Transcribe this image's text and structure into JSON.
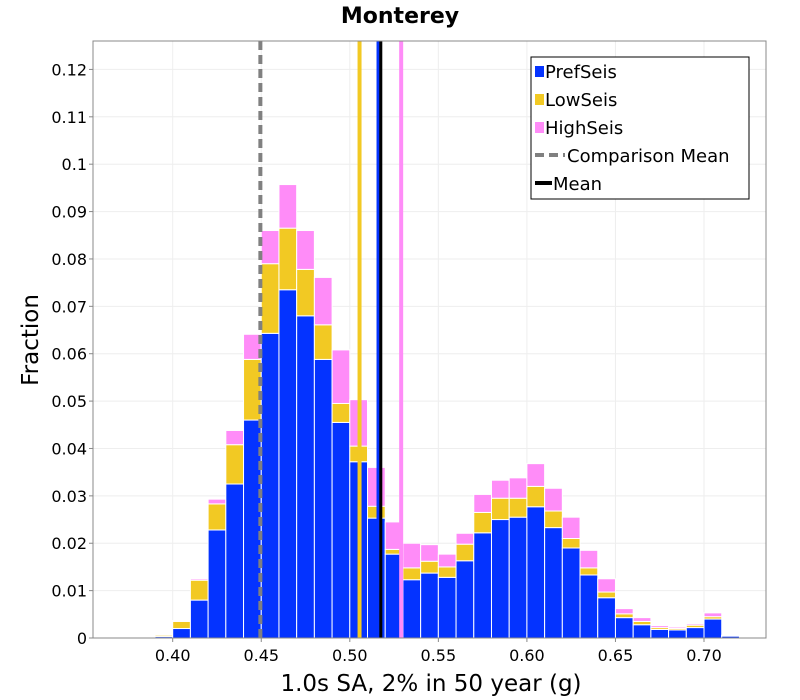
{
  "chart_data": {
    "type": "bar",
    "stacked": true,
    "title": "Monterey",
    "xlabel": "1.0s SA, 2% in 50 year (g)",
    "ylabel": "Fraction",
    "xlim": [
      0.355,
      0.735
    ],
    "ylim": [
      0,
      0.126
    ],
    "bin_width": 0.01,
    "grid": true,
    "legend_position": "top-right",
    "x": [
      0.395,
      0.405,
      0.415,
      0.425,
      0.435,
      0.445,
      0.455,
      0.465,
      0.475,
      0.485,
      0.495,
      0.505,
      0.515,
      0.525,
      0.535,
      0.545,
      0.555,
      0.565,
      0.575,
      0.585,
      0.595,
      0.605,
      0.615,
      0.625,
      0.635,
      0.645,
      0.655,
      0.665,
      0.675,
      0.685,
      0.695,
      0.705,
      0.715
    ],
    "series": [
      {
        "name": "PrefSeis",
        "color": "#0433ff",
        "values": [
          0.0003,
          0.002,
          0.008,
          0.0228,
          0.0325,
          0.046,
          0.0643,
          0.0735,
          0.068,
          0.0588,
          0.0455,
          0.0372,
          0.0253,
          0.0177,
          0.0123,
          0.0137,
          0.0128,
          0.0163,
          0.0222,
          0.025,
          0.0255,
          0.0277,
          0.0233,
          0.019,
          0.0133,
          0.0085,
          0.0043,
          0.0028,
          0.0018,
          0.0017,
          0.0022,
          0.004,
          0.0004
        ]
      },
      {
        "name": "LowSeis",
        "color": "#f2c923",
        "values": [
          0.0003,
          0.0015,
          0.0042,
          0.0055,
          0.0083,
          0.0128,
          0.0147,
          0.013,
          0.0098,
          0.0073,
          0.004,
          0.0033,
          0.0025,
          0.001,
          0.0025,
          0.0025,
          0.0022,
          0.0035,
          0.0043,
          0.0045,
          0.004,
          0.0043,
          0.0035,
          0.002,
          0.0015,
          0.0012,
          0.0008,
          0.0007,
          0.0004,
          0.0003,
          0.0005,
          0.0005,
          0.0001
        ]
      },
      {
        "name": "HighSeis",
        "color": "#ff8cf8",
        "values": [
          0.0001,
          0.0002,
          0.0003,
          0.001,
          0.003,
          0.0053,
          0.007,
          0.0092,
          0.0082,
          0.01,
          0.0113,
          0.0098,
          0.0082,
          0.0058,
          0.0052,
          0.0035,
          0.0027,
          0.0023,
          0.0038,
          0.0038,
          0.0043,
          0.0048,
          0.0048,
          0.0045,
          0.0037,
          0.0028,
          0.0011,
          0.0008,
          0.0004,
          0.0003,
          0.0003,
          0.0008,
          0.0001
        ]
      }
    ],
    "reference_lines": [
      {
        "name": "Comparison Mean",
        "x": 0.4495,
        "color": "#808080",
        "style": "dashed"
      },
      {
        "name": "Mean",
        "x": 0.5175,
        "color": "#000000",
        "style": "solid"
      },
      {
        "name": "PrefSeis mean",
        "x": 0.5165,
        "color": "#0433ff",
        "style": "solid"
      },
      {
        "name": "LowSeis mean",
        "x": 0.5055,
        "color": "#f2c923",
        "style": "solid"
      },
      {
        "name": "HighSeis mean",
        "x": 0.529,
        "color": "#ff8cf8",
        "style": "solid"
      }
    ],
    "x_ticks": [
      0.4,
      0.45,
      0.5,
      0.55,
      0.6,
      0.65,
      0.7
    ],
    "x_tick_labels": [
      "0.40",
      "0.45",
      "0.50",
      "0.55",
      "0.60",
      "0.65",
      "0.70"
    ],
    "y_ticks": [
      0,
      0.01,
      0.02,
      0.03,
      0.04,
      0.05,
      0.06,
      0.07,
      0.08,
      0.09,
      0.1,
      0.11,
      0.12
    ],
    "y_tick_labels": [
      "0",
      "0.01",
      "0.02",
      "0.03",
      "0.04",
      "0.05",
      "0.06",
      "0.07",
      "0.08",
      "0.09",
      "0.1",
      "0.11",
      "0.12"
    ],
    "legend": [
      {
        "label": "PrefSeis",
        "kind": "box",
        "color": "#0433ff"
      },
      {
        "label": "LowSeis",
        "kind": "box",
        "color": "#f2c923"
      },
      {
        "label": "HighSeis",
        "kind": "box",
        "color": "#ff8cf8"
      },
      {
        "label": "Comparison Mean",
        "kind": "dashed-line",
        "color": "#808080"
      },
      {
        "label": "Mean",
        "kind": "solid-line",
        "color": "#000000"
      }
    ]
  }
}
